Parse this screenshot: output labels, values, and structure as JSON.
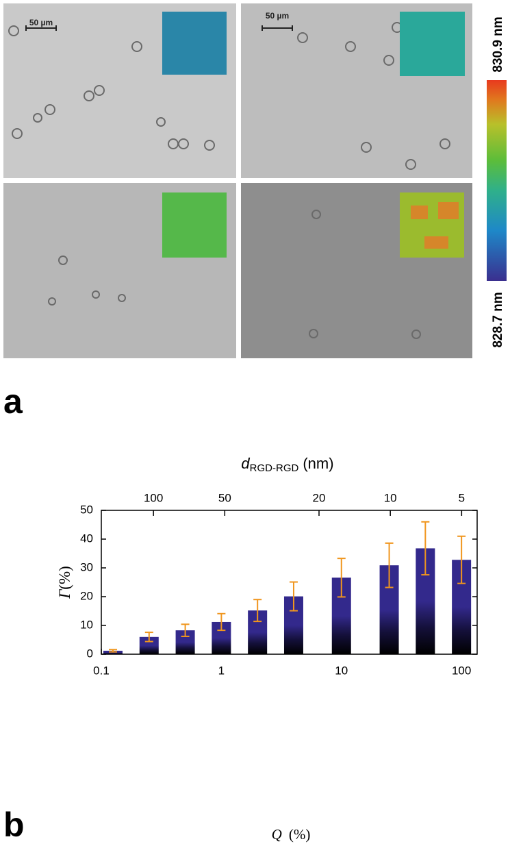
{
  "panel_a": {
    "panel_label": "a",
    "scale_bars": [
      "50 µm",
      "50 µm"
    ],
    "colorbar": {
      "max_label": "830.9 nm",
      "min_label": "828.7 nm"
    }
  },
  "chart_data": {
    "type": "bar",
    "panel_label": "b",
    "x": [
      0.125,
      0.25,
      0.5,
      1,
      2,
      4,
      10,
      25,
      50,
      100
    ],
    "values": [
      1.2,
      6.0,
      8.3,
      11.2,
      15.2,
      20.1,
      26.6,
      30.9,
      36.8,
      32.8
    ],
    "errors": [
      0.4,
      1.6,
      2.1,
      2.9,
      3.8,
      5.0,
      6.7,
      7.7,
      9.2,
      8.2
    ],
    "color": "#33298c",
    "error_color": "#f0961e",
    "xscale": "log",
    "xlim": [
      0.1,
      135
    ],
    "xticks": [
      0.1,
      1,
      10,
      100
    ],
    "ylim": [
      0,
      50
    ],
    "yticks": [
      0,
      10,
      20,
      30,
      40,
      50
    ],
    "x2scale": "log",
    "x2lim": [
      166,
      4.3
    ],
    "x2ticks": [
      100,
      50,
      20,
      10,
      5
    ],
    "xlabel": {
      "symbol": "Q",
      "unit": "(%)"
    },
    "ylabel": {
      "symbol": "Γ",
      "unit": "(%)"
    },
    "x2label": {
      "symbol": "d",
      "subscript": "RGD-RGD",
      "unit": "(nm)"
    }
  }
}
